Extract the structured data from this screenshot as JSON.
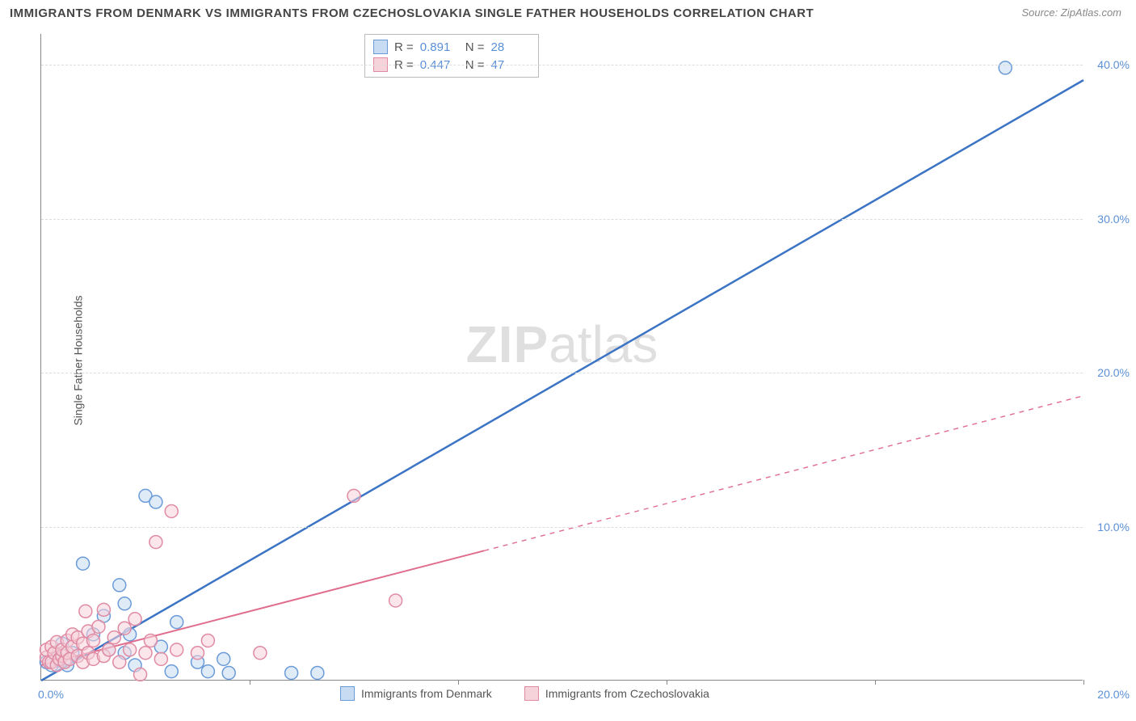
{
  "title": "IMMIGRANTS FROM DENMARK VS IMMIGRANTS FROM CZECHOSLOVAKIA SINGLE FATHER HOUSEHOLDS CORRELATION CHART",
  "source": "Source: ZipAtlas.com",
  "ylabel": "Single Father Households",
  "watermark_bold": "ZIP",
  "watermark_light": "atlas",
  "chart": {
    "type": "scatter",
    "background_color": "#ffffff",
    "grid_color": "#dddddd",
    "axis_color": "#888888",
    "xlim": [
      0,
      20
    ],
    "ylim": [
      0,
      42
    ],
    "x_ticks": [
      0,
      4,
      8,
      12,
      16,
      20
    ],
    "x_tick_labels": {
      "0": "0.0%",
      "20": "20.0%"
    },
    "y_ticks": [
      10,
      20,
      30,
      40
    ],
    "y_tick_labels": [
      "10.0%",
      "20.0%",
      "30.0%",
      "40.0%"
    ],
    "label_fontsize": 14,
    "label_color": "#5b8fd6",
    "marker_radius": 8,
    "marker_opacity": 0.55,
    "series": [
      {
        "name": "Immigrants from Denmark",
        "key": "denmark",
        "color_fill": "#c7dbf2",
        "color_stroke": "#6a9bd8",
        "R": "0.891",
        "N": "28",
        "regression": {
          "x1": 0,
          "y1": 0,
          "x2": 20,
          "y2": 39,
          "style": "solid",
          "width": 2.5,
          "color": "#3b74c4",
          "solid_until_x": 20
        },
        "points": [
          [
            0.1,
            1.2
          ],
          [
            0.2,
            1.0
          ],
          [
            0.3,
            1.5
          ],
          [
            0.35,
            1.3
          ],
          [
            0.4,
            2.4
          ],
          [
            0.5,
            1.0
          ],
          [
            0.6,
            1.8
          ],
          [
            0.8,
            7.6
          ],
          [
            1.0,
            3.0
          ],
          [
            1.2,
            4.2
          ],
          [
            1.3,
            2.0
          ],
          [
            1.5,
            6.2
          ],
          [
            1.6,
            1.8
          ],
          [
            1.6,
            5.0
          ],
          [
            1.7,
            3.0
          ],
          [
            1.8,
            1.0
          ],
          [
            2.0,
            12.0
          ],
          [
            2.2,
            11.6
          ],
          [
            2.3,
            2.2
          ],
          [
            2.5,
            0.6
          ],
          [
            2.6,
            3.8
          ],
          [
            3.0,
            1.2
          ],
          [
            3.2,
            0.6
          ],
          [
            3.5,
            1.4
          ],
          [
            3.6,
            0.5
          ],
          [
            4.8,
            0.5
          ],
          [
            5.3,
            0.5
          ],
          [
            18.5,
            39.8
          ]
        ]
      },
      {
        "name": "Immigrants from Czechoslovakia",
        "key": "czechoslovakia",
        "color_fill": "#f6d2db",
        "color_stroke": "#e08aa3",
        "R": "0.447",
        "N": "47",
        "regression": {
          "x1": 0,
          "y1": 1.0,
          "x2": 20,
          "y2": 18.5,
          "style": "dashed",
          "width": 2,
          "color": "#e06d8e",
          "solid_until_x": 8.5
        },
        "points": [
          [
            0.1,
            1.5
          ],
          [
            0.1,
            2.0
          ],
          [
            0.15,
            1.2
          ],
          [
            0.2,
            1.2
          ],
          [
            0.2,
            2.2
          ],
          [
            0.25,
            1.8
          ],
          [
            0.3,
            1.0
          ],
          [
            0.3,
            2.5
          ],
          [
            0.35,
            1.4
          ],
          [
            0.4,
            1.6
          ],
          [
            0.4,
            2.0
          ],
          [
            0.45,
            1.2
          ],
          [
            0.5,
            1.8
          ],
          [
            0.5,
            2.6
          ],
          [
            0.55,
            1.4
          ],
          [
            0.6,
            2.2
          ],
          [
            0.6,
            3.0
          ],
          [
            0.7,
            1.6
          ],
          [
            0.7,
            2.8
          ],
          [
            0.8,
            1.2
          ],
          [
            0.8,
            2.4
          ],
          [
            0.85,
            4.5
          ],
          [
            0.9,
            1.8
          ],
          [
            0.9,
            3.2
          ],
          [
            1.0,
            1.4
          ],
          [
            1.0,
            2.6
          ],
          [
            1.1,
            3.5
          ],
          [
            1.2,
            1.6
          ],
          [
            1.2,
            4.6
          ],
          [
            1.3,
            2.0
          ],
          [
            1.4,
            2.8
          ],
          [
            1.5,
            1.2
          ],
          [
            1.6,
            3.4
          ],
          [
            1.7,
            2.0
          ],
          [
            1.8,
            4.0
          ],
          [
            1.9,
            0.4
          ],
          [
            2.0,
            1.8
          ],
          [
            2.1,
            2.6
          ],
          [
            2.2,
            9.0
          ],
          [
            2.3,
            1.4
          ],
          [
            2.5,
            11.0
          ],
          [
            2.6,
            2.0
          ],
          [
            3.0,
            1.8
          ],
          [
            3.2,
            2.6
          ],
          [
            4.2,
            1.8
          ],
          [
            6.0,
            12.0
          ],
          [
            6.8,
            5.2
          ]
        ]
      }
    ],
    "stats_legend": {
      "R_label": "R =",
      "N_label": "N ="
    }
  }
}
